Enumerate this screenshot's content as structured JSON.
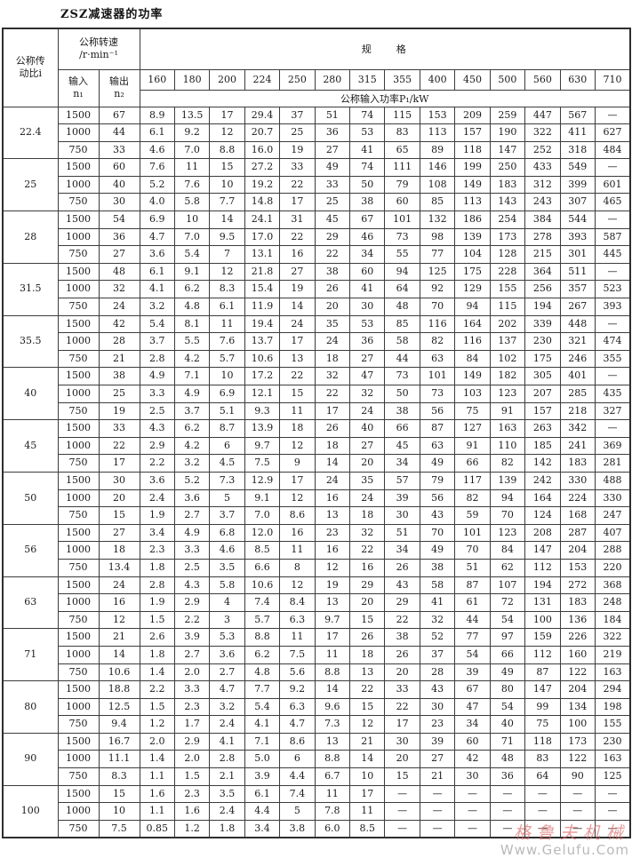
{
  "page": {
    "title": "ZSZ减速器的功率"
  },
  "table": {
    "header": {
      "ratio_line1": "公称传",
      "ratio_line2": "动比i",
      "speed_label": "公称转速",
      "speed_unit": "/r·min⁻¹",
      "input_label": "输入",
      "input_sub": "n₁",
      "output_label": "输出",
      "output_sub": "n₂",
      "spec_label": "规　　格",
      "power_label": "公称输入功率P₁/kW",
      "sizes": [
        "160",
        "180",
        "200",
        "224",
        "250",
        "280",
        "315",
        "355",
        "400",
        "450",
        "500",
        "560",
        "630",
        "710"
      ]
    },
    "groups": [
      {
        "ratio": "22.4",
        "rows": [
          {
            "n1": "1500",
            "n2": "67",
            "values": [
              "8.9",
              "13.5",
              "17",
              "29.4",
              "37",
              "51",
              "74",
              "115",
              "153",
              "209",
              "259",
              "447",
              "567",
              "—"
            ]
          },
          {
            "n1": "1000",
            "n2": "44",
            "values": [
              "6.1",
              "9.2",
              "12",
              "20.7",
              "25",
              "36",
              "53",
              "83",
              "113",
              "157",
              "190",
              "322",
              "411",
              "627"
            ]
          },
          {
            "n1": "750",
            "n2": "33",
            "values": [
              "4.6",
              "7.0",
              "8.8",
              "16.0",
              "19",
              "27",
              "41",
              "65",
              "89",
              "118",
              "147",
              "252",
              "318",
              "484"
            ]
          }
        ]
      },
      {
        "ratio": "25",
        "rows": [
          {
            "n1": "1500",
            "n2": "60",
            "values": [
              "7.6",
              "11",
              "15",
              "27.2",
              "33",
              "49",
              "74",
              "111",
              "146",
              "199",
              "250",
              "433",
              "549",
              "—"
            ]
          },
          {
            "n1": "1000",
            "n2": "40",
            "values": [
              "5.2",
              "7.6",
              "10",
              "19.2",
              "22",
              "33",
              "50",
              "79",
              "108",
              "149",
              "183",
              "312",
              "399",
              "601"
            ]
          },
          {
            "n1": "750",
            "n2": "30",
            "values": [
              "4.0",
              "5.8",
              "7.7",
              "14.8",
              "17",
              "25",
              "38",
              "60",
              "85",
              "113",
              "143",
              "243",
              "307",
              "465"
            ]
          }
        ]
      },
      {
        "ratio": "28",
        "rows": [
          {
            "n1": "1500",
            "n2": "54",
            "values": [
              "6.9",
              "10",
              "14",
              "24.1",
              "31",
              "45",
              "67",
              "101",
              "132",
              "186",
              "254",
              "384",
              "544",
              "—"
            ]
          },
          {
            "n1": "1000",
            "n2": "36",
            "values": [
              "4.7",
              "7.0",
              "9.5",
              "17.0",
              "22",
              "29",
              "46",
              "73",
              "98",
              "139",
              "173",
              "278",
              "393",
              "587"
            ]
          },
          {
            "n1": "750",
            "n2": "27",
            "values": [
              "3.6",
              "5.4",
              "7",
              "13.1",
              "16",
              "22",
              "34",
              "55",
              "77",
              "104",
              "128",
              "215",
              "301",
              "445"
            ]
          }
        ]
      },
      {
        "ratio": "31.5",
        "rows": [
          {
            "n1": "1500",
            "n2": "48",
            "values": [
              "6.1",
              "9.1",
              "12",
              "21.8",
              "27",
              "38",
              "60",
              "94",
              "125",
              "175",
              "228",
              "364",
              "511",
              "—"
            ]
          },
          {
            "n1": "1000",
            "n2": "32",
            "values": [
              "4.1",
              "6.2",
              "8.3",
              "15.4",
              "19",
              "26",
              "41",
              "64",
              "92",
              "129",
              "155",
              "256",
              "357",
              "523"
            ]
          },
          {
            "n1": "750",
            "n2": "24",
            "values": [
              "3.2",
              "4.8",
              "6.1",
              "11.9",
              "14",
              "20",
              "30",
              "48",
              "70",
              "94",
              "115",
              "194",
              "267",
              "393"
            ]
          }
        ]
      },
      {
        "ratio": "35.5",
        "rows": [
          {
            "n1": "1500",
            "n2": "42",
            "values": [
              "5.4",
              "8.1",
              "11",
              "19.4",
              "24",
              "35",
              "53",
              "85",
              "116",
              "164",
              "202",
              "339",
              "448",
              "—"
            ]
          },
          {
            "n1": "1000",
            "n2": "28",
            "values": [
              "3.7",
              "5.5",
              "7.6",
              "13.7",
              "17",
              "24",
              "36",
              "58",
              "82",
              "116",
              "137",
              "230",
              "321",
              "474"
            ]
          },
          {
            "n1": "750",
            "n2": "21",
            "values": [
              "2.8",
              "4.2",
              "5.7",
              "10.6",
              "13",
              "18",
              "27",
              "44",
              "63",
              "84",
              "102",
              "175",
              "246",
              "355"
            ]
          }
        ]
      },
      {
        "ratio": "40",
        "rows": [
          {
            "n1": "1500",
            "n2": "38",
            "values": [
              "4.9",
              "7.1",
              "10",
              "17.2",
              "22",
              "32",
              "47",
              "73",
              "101",
              "149",
              "182",
              "305",
              "401",
              "—"
            ]
          },
          {
            "n1": "1000",
            "n2": "25",
            "values": [
              "3.3",
              "4.9",
              "6.9",
              "12.1",
              "15",
              "22",
              "32",
              "50",
              "73",
              "103",
              "123",
              "207",
              "285",
              "435"
            ]
          },
          {
            "n1": "750",
            "n2": "19",
            "values": [
              "2.5",
              "3.7",
              "5.1",
              "9.3",
              "11",
              "17",
              "24",
              "38",
              "56",
              "75",
              "91",
              "157",
              "218",
              "327"
            ]
          }
        ]
      },
      {
        "ratio": "45",
        "rows": [
          {
            "n1": "1500",
            "n2": "33",
            "values": [
              "4.3",
              "6.2",
              "8.7",
              "13.9",
              "18",
              "26",
              "40",
              "66",
              "87",
              "127",
              "163",
              "263",
              "342",
              "—"
            ]
          },
          {
            "n1": "1000",
            "n2": "22",
            "values": [
              "2.9",
              "4.2",
              "6",
              "9.7",
              "12",
              "18",
              "27",
              "45",
              "63",
              "91",
              "110",
              "185",
              "241",
              "369"
            ]
          },
          {
            "n1": "750",
            "n2": "17",
            "values": [
              "2.2",
              "3.2",
              "4.5",
              "7.5",
              "9",
              "14",
              "20",
              "34",
              "49",
              "66",
              "82",
              "142",
              "183",
              "281"
            ]
          }
        ]
      },
      {
        "ratio": "50",
        "rows": [
          {
            "n1": "1500",
            "n2": "30",
            "values": [
              "3.6",
              "5.2",
              "7.3",
              "12.9",
              "17",
              "24",
              "35",
              "57",
              "79",
              "117",
              "139",
              "242",
              "330",
              "488"
            ]
          },
          {
            "n1": "1000",
            "n2": "20",
            "values": [
              "2.4",
              "3.6",
              "5",
              "9.1",
              "12",
              "16",
              "24",
              "39",
              "56",
              "82",
              "94",
              "164",
              "224",
              "330"
            ]
          },
          {
            "n1": "750",
            "n2": "15",
            "values": [
              "1.9",
              "2.7",
              "3.7",
              "7.0",
              "8.6",
              "13",
              "18",
              "30",
              "43",
              "59",
              "70",
              "124",
              "168",
              "247"
            ]
          }
        ]
      },
      {
        "ratio": "56",
        "rows": [
          {
            "n1": "1500",
            "n2": "27",
            "values": [
              "3.4",
              "4.9",
              "6.8",
              "12.0",
              "16",
              "23",
              "32",
              "51",
              "70",
              "101",
              "123",
              "208",
              "287",
              "407"
            ]
          },
          {
            "n1": "1000",
            "n2": "18",
            "values": [
              "2.3",
              "3.3",
              "4.6",
              "8.5",
              "11",
              "16",
              "22",
              "34",
              "49",
              "70",
              "84",
              "147",
              "204",
              "288"
            ]
          },
          {
            "n1": "750",
            "n2": "13.4",
            "values": [
              "1.8",
              "2.5",
              "3.5",
              "6.6",
              "8",
              "12",
              "16",
              "26",
              "38",
              "51",
              "62",
              "112",
              "153",
              "220"
            ]
          }
        ]
      },
      {
        "ratio": "63",
        "rows": [
          {
            "n1": "1500",
            "n2": "24",
            "values": [
              "2.8",
              "4.3",
              "5.8",
              "10.6",
              "12",
              "19",
              "29",
              "43",
              "58",
              "87",
              "107",
              "194",
              "272",
              "368"
            ]
          },
          {
            "n1": "1000",
            "n2": "16",
            "values": [
              "1.9",
              "2.9",
              "4",
              "7.4",
              "8.4",
              "13",
              "20",
              "29",
              "41",
              "61",
              "72",
              "131",
              "183",
              "248"
            ]
          },
          {
            "n1": "750",
            "n2": "12",
            "values": [
              "1.5",
              "2.2",
              "3",
              "5.7",
              "6.3",
              "9.7",
              "15",
              "22",
              "32",
              "44",
              "54",
              "100",
              "136",
              "184"
            ]
          }
        ]
      },
      {
        "ratio": "71",
        "rows": [
          {
            "n1": "1500",
            "n2": "21",
            "values": [
              "2.6",
              "3.9",
              "5.3",
              "8.8",
              "11",
              "17",
              "26",
              "38",
              "52",
              "77",
              "97",
              "159",
              "226",
              "322"
            ]
          },
          {
            "n1": "1000",
            "n2": "14",
            "values": [
              "1.8",
              "2.7",
              "3.6",
              "6.2",
              "7.5",
              "11",
              "18",
              "26",
              "37",
              "54",
              "66",
              "112",
              "160",
              "219"
            ]
          },
          {
            "n1": "750",
            "n2": "10.6",
            "values": [
              "1.4",
              "2.0",
              "2.7",
              "4.8",
              "5.6",
              "8.8",
              "13",
              "20",
              "28",
              "39",
              "49",
              "87",
              "122",
              "163"
            ]
          }
        ]
      },
      {
        "ratio": "80",
        "rows": [
          {
            "n1": "1500",
            "n2": "18.8",
            "values": [
              "2.2",
              "3.3",
              "4.7",
              "7.7",
              "9.2",
              "14",
              "22",
              "33",
              "43",
              "67",
              "80",
              "147",
              "204",
              "294"
            ]
          },
          {
            "n1": "1000",
            "n2": "12.5",
            "values": [
              "1.5",
              "2.3",
              "3.2",
              "5.4",
              "6.3",
              "9.6",
              "15",
              "22",
              "30",
              "47",
              "54",
              "99",
              "134",
              "198"
            ]
          },
          {
            "n1": "750",
            "n2": "9.4",
            "values": [
              "1.2",
              "1.7",
              "2.4",
              "4.1",
              "4.7",
              "7.3",
              "12",
              "17",
              "23",
              "34",
              "40",
              "75",
              "100",
              "155"
            ]
          }
        ]
      },
      {
        "ratio": "90",
        "rows": [
          {
            "n1": "1500",
            "n2": "16.7",
            "values": [
              "2.0",
              "2.9",
              "4.1",
              "7.1",
              "8.6",
              "13",
              "21",
              "30",
              "39",
              "60",
              "71",
              "118",
              "173",
              "230"
            ]
          },
          {
            "n1": "1000",
            "n2": "11.1",
            "values": [
              "1.4",
              "2.0",
              "2.8",
              "5.0",
              "6",
              "8.8",
              "14",
              "20",
              "27",
              "42",
              "48",
              "83",
              "122",
              "163"
            ]
          },
          {
            "n1": "750",
            "n2": "8.3",
            "values": [
              "1.1",
              "1.5",
              "2.1",
              "3.9",
              "4.4",
              "6.7",
              "10",
              "15",
              "21",
              "30",
              "36",
              "64",
              "90",
              "125"
            ]
          }
        ]
      },
      {
        "ratio": "100",
        "rows": [
          {
            "n1": "1500",
            "n2": "15",
            "values": [
              "1.6",
              "2.3",
              "3.5",
              "6.1",
              "7.4",
              "11",
              "17",
              "—",
              "—",
              "—",
              "—",
              "—",
              "—",
              "—"
            ]
          },
          {
            "n1": "1000",
            "n2": "10",
            "values": [
              "1.1",
              "1.6",
              "2.4",
              "4.4",
              "5",
              "7.8",
              "11",
              "—",
              "—",
              "—",
              "—",
              "—",
              "—",
              "—"
            ]
          },
          {
            "n1": "750",
            "n2": "7.5",
            "values": [
              "0.85",
              "1.2",
              "1.8",
              "3.4",
              "3.8",
              "6.0",
              "8.5",
              "—",
              "—",
              "—",
              "—",
              "—",
              "—",
              "—"
            ]
          }
        ]
      }
    ]
  },
  "watermark": {
    "line1": "格鲁夫机械",
    "line2": "Www.Gelufu.Com",
    "brand_color": "#d96a6a",
    "url_color": "#a8a8a8"
  }
}
